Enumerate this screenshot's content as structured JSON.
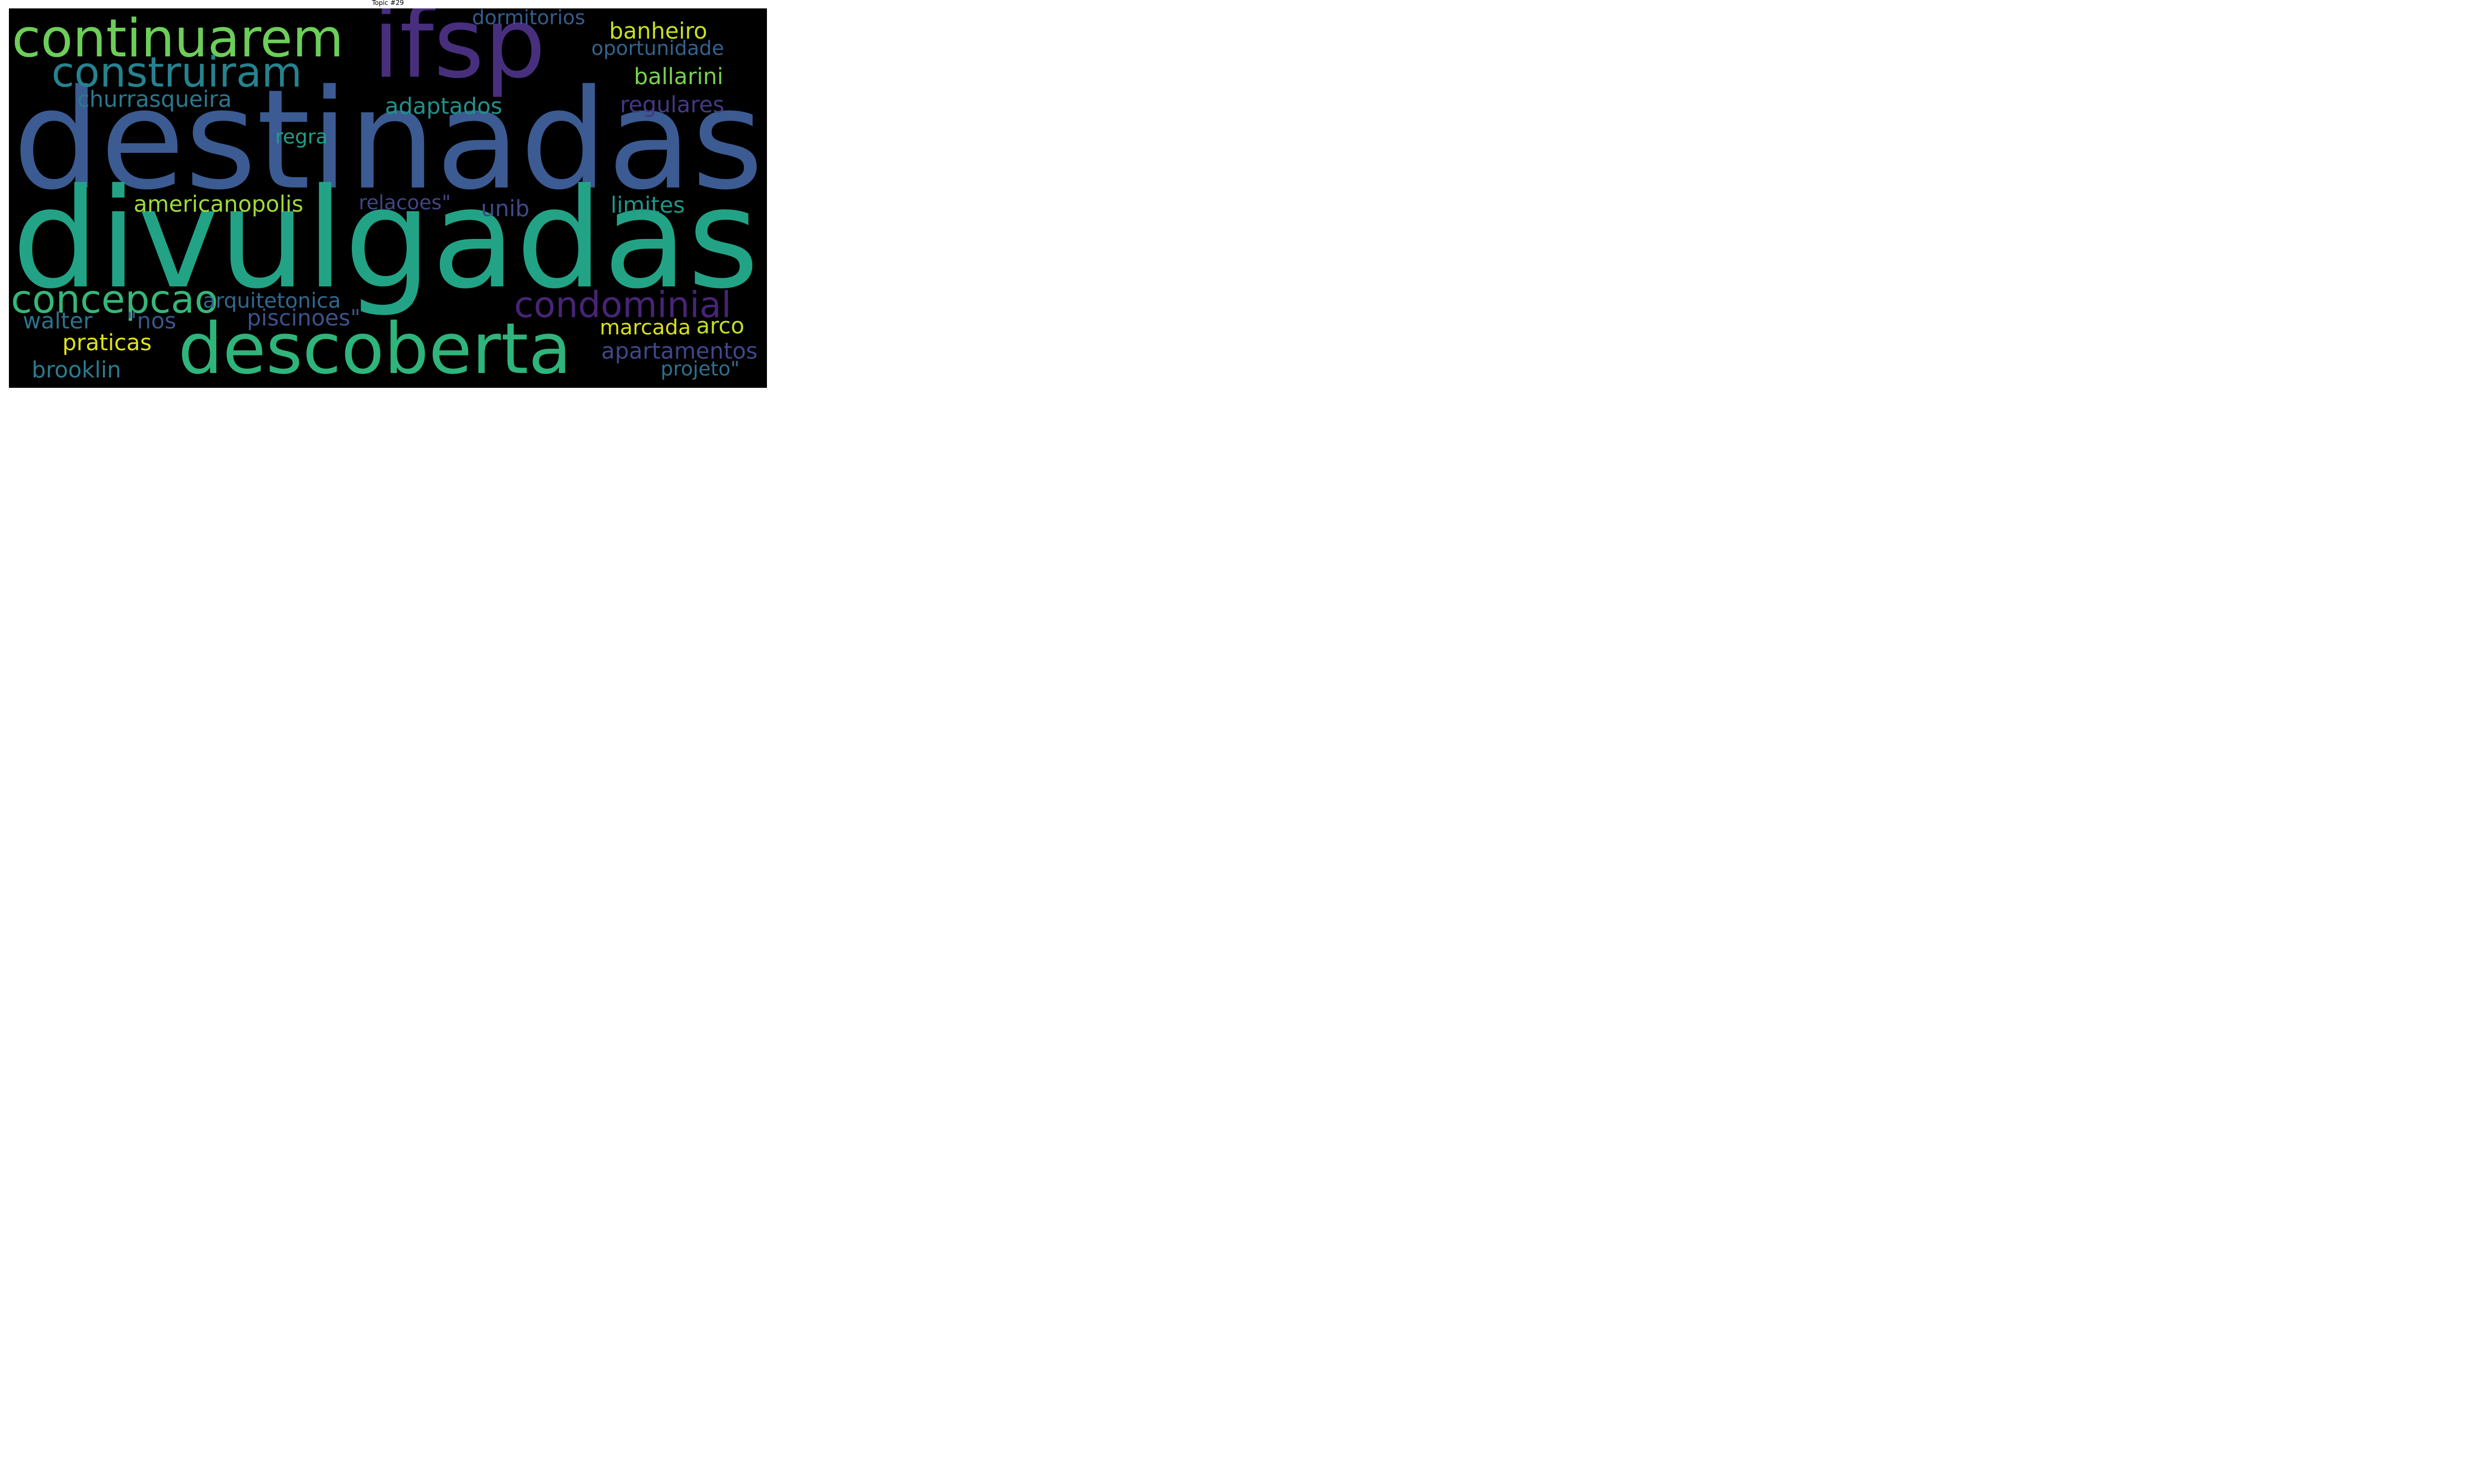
{
  "title": "Topic #29",
  "words": [
    {
      "text": "destinadas",
      "color": "#3b5b92"
    },
    {
      "text": "divulgadas",
      "color": "#22a386"
    },
    {
      "text": "ifsp",
      "color": "#472f7d"
    },
    {
      "text": "continuarem",
      "color": "#6cce59"
    },
    {
      "text": "construiram",
      "color": "#26828e"
    },
    {
      "text": "descoberta",
      "color": "#2fb47c"
    },
    {
      "text": "concepcao",
      "color": "#35b779"
    },
    {
      "text": "condominial",
      "color": "#482475"
    },
    {
      "text": "dormitorios",
      "color": "#365c8d"
    },
    {
      "text": "banheiro",
      "color": "#c8e020"
    },
    {
      "text": "oportunidade",
      "color": "#33638d"
    },
    {
      "text": "ballarini",
      "color": "#7ad151"
    },
    {
      "text": "churrasqueira",
      "color": "#2a788e"
    },
    {
      "text": "adaptados",
      "color": "#21918c"
    },
    {
      "text": "regulares",
      "color": "#443983"
    },
    {
      "text": "regra",
      "color": "#1f9e89"
    },
    {
      "text": "americanopolis",
      "color": "#a0da39"
    },
    {
      "text": "relacoes\"",
      "color": "#414487"
    },
    {
      "text": "unib",
      "color": "#3e4a89"
    },
    {
      "text": "limites",
      "color": "#1f968b"
    },
    {
      "text": "arquitetonica",
      "color": "#31688e"
    },
    {
      "text": "piscinoes\"",
      "color": "#3b528b"
    },
    {
      "text": "walter",
      "color": "#2c728e"
    },
    {
      "text": "\"nos",
      "color": "#39568c"
    },
    {
      "text": "marcada",
      "color": "#d8e219"
    },
    {
      "text": "arco",
      "color": "#bddf26"
    },
    {
      "text": "praticas",
      "color": "#dde318"
    },
    {
      "text": "apartamentos",
      "color": "#3f4889"
    },
    {
      "text": "brooklin",
      "color": "#2a7b8e"
    },
    {
      "text": "projeto\"",
      "color": "#2d708e"
    }
  ]
}
